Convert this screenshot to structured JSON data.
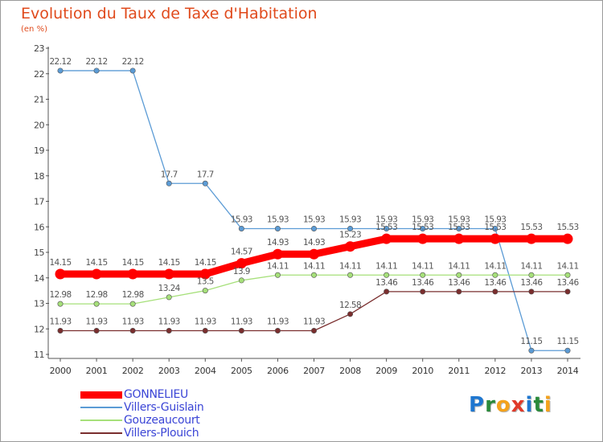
{
  "header": {
    "title": "Evolution du Taux de Taxe d'Habitation",
    "subtitle": "(en %)"
  },
  "logo": {
    "text": "Proxiti",
    "letters": [
      {
        "ch": "P",
        "color": "#1f77d0"
      },
      {
        "ch": "r",
        "color": "#2a8a3a"
      },
      {
        "ch": "o",
        "color": "#f4a21c"
      },
      {
        "ch": "x",
        "color": "#e03a2a"
      },
      {
        "ch": "i",
        "color": "#1f77d0"
      },
      {
        "ch": "t",
        "color": "#2a8a3a"
      },
      {
        "ch": "i",
        "color": "#f4a21c"
      }
    ]
  },
  "chart_data": {
    "type": "line",
    "title": "Evolution du Taux de Taxe d'Habitation",
    "ylabel": "(en %)",
    "ylim": [
      11,
      23
    ],
    "yticks": [
      11,
      12,
      13,
      14,
      15,
      16,
      17,
      18,
      19,
      20,
      21,
      22,
      23
    ],
    "x": [
      2000,
      2001,
      2002,
      2003,
      2004,
      2005,
      2006,
      2007,
      2008,
      2009,
      2010,
      2011,
      2012,
      2013,
      2014
    ],
    "grid": false,
    "legend": "bottom-left",
    "series": [
      {
        "name": "GONNELIEU",
        "color": "#ff0000",
        "emphasis": true,
        "values": [
          14.15,
          14.15,
          14.15,
          14.15,
          14.15,
          14.57,
          14.93,
          14.93,
          15.23,
          15.53,
          15.53,
          15.53,
          15.53,
          15.53,
          15.53
        ]
      },
      {
        "name": "Villers-Guislain",
        "color": "#5b9bd5",
        "emphasis": false,
        "values": [
          22.12,
          22.12,
          22.12,
          17.7,
          17.7,
          15.93,
          15.93,
          15.93,
          15.93,
          15.93,
          15.93,
          15.93,
          15.93,
          11.15,
          11.15
        ]
      },
      {
        "name": "Gouzeaucourt",
        "color": "#a6e07a",
        "emphasis": false,
        "values": [
          12.98,
          12.98,
          12.98,
          13.24,
          13.5,
          13.9,
          14.11,
          14.11,
          14.11,
          14.11,
          14.11,
          14.11,
          14.11,
          14.11,
          14.11
        ]
      },
      {
        "name": "Villers-Plouich",
        "color": "#7a2e2e",
        "emphasis": false,
        "values": [
          11.93,
          11.93,
          11.93,
          11.93,
          11.93,
          11.93,
          11.93,
          11.93,
          12.58,
          13.46,
          13.46,
          13.46,
          13.46,
          13.46,
          13.46
        ]
      }
    ]
  }
}
